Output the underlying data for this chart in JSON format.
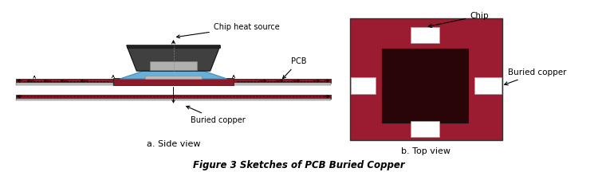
{
  "bg_color": "#ffffff",
  "dark_red": "#8B1A2A",
  "crimson": "#9B1B30",
  "chip_dark": "#3a3a3a",
  "chip_bottom_light": "#c0c0c0",
  "blue_bond": "#6aafd6",
  "white": "#ffffff",
  "very_dark_red": "#2a0508",
  "caption_font": 8,
  "label_font": 7,
  "figure_caption": "Figure 3 Sketches of PCB Buried Copper",
  "subtitle_a": "a. Side view",
  "subtitle_b": "b. Top view"
}
